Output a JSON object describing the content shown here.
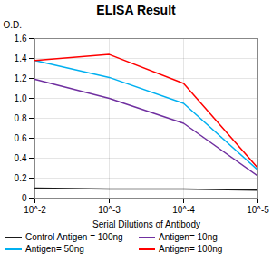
{
  "chart_data": {
    "type": "line",
    "title": "ELISA Result",
    "xlabel": "Serial Dilutions of Antibody",
    "ylabel": "O.D.",
    "x": [
      0.01,
      0.001,
      0.0001,
      1e-05
    ],
    "series": [
      {
        "name": "Control Antigen = 100ng",
        "color": "#1a1a1a",
        "values": [
          0.1,
          0.09,
          0.09,
          0.08
        ]
      },
      {
        "name": "Antigen= 10ng",
        "color": "#7030a0",
        "values": [
          1.19,
          1.0,
          0.75,
          0.22
        ]
      },
      {
        "name": "Antigen= 50ng",
        "color": "#00b0f0",
        "values": [
          1.38,
          1.21,
          0.95,
          0.28
        ]
      },
      {
        "name": "Antigen= 100ng",
        "color": "#ff0000",
        "values": [
          1.38,
          1.44,
          1.15,
          0.3
        ]
      }
    ],
    "log": "x",
    "xlim": [
      0.01,
      1e-05
    ],
    "xticks": [
      {
        "value": 0.01,
        "label": "10^-2"
      },
      {
        "value": 0.001,
        "label": "10^-3"
      },
      {
        "value": 0.0001,
        "label": "10^-4"
      },
      {
        "value": 1e-05,
        "label": "10^-5"
      }
    ],
    "ylim": [
      0,
      1.6
    ],
    "yticks": [
      0,
      0.2,
      0.4,
      0.6,
      0.8,
      {
        "value": 1.0,
        "label": "1.0"
      },
      1.2,
      1.4,
      1.6
    ],
    "grid": true,
    "legend": "bottom"
  }
}
